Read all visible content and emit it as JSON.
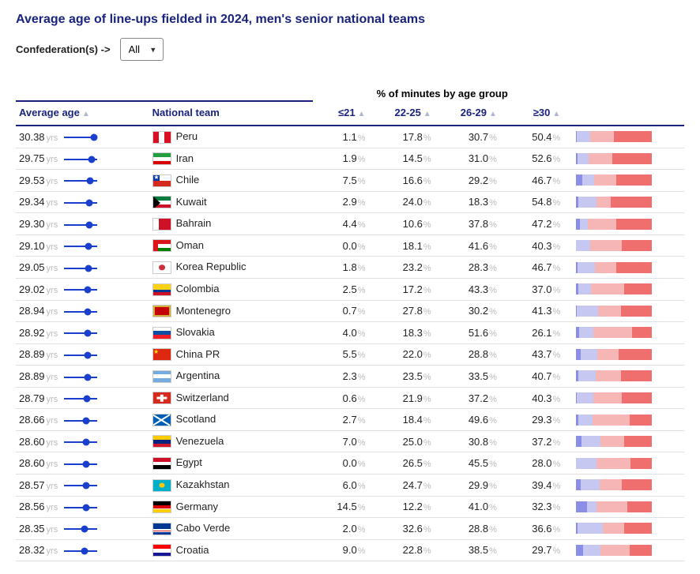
{
  "title": "Average age of line-ups fielded in 2024, men's senior national teams",
  "filter": {
    "label": "Confederation(s) ->",
    "selected": "All"
  },
  "age_group_header": "% of minutes by age group",
  "columns": {
    "avg_age": "Average age",
    "team": "National team",
    "g21": "≤21",
    "g2225": "22-25",
    "g2629": "26-29",
    "g30": "≥30"
  },
  "yrs_label": "yrs",
  "pct_label": "%",
  "age_spark": {
    "min": 24,
    "max": 31
  },
  "stack_colors": [
    "#8a8ee6",
    "#c6c8f2",
    "#f6b6b6",
    "#ef6e6e"
  ],
  "flag_defs": {
    "Peru": [
      [
        "bg",
        "#ffffff"
      ],
      [
        "v",
        "0",
        "33",
        "#d91023"
      ],
      [
        "v",
        "67",
        "33",
        "#d91023"
      ]
    ],
    "Iran": [
      [
        "h",
        "0",
        "33",
        "#239f40"
      ],
      [
        "h",
        "33",
        "34",
        "#ffffff"
      ],
      [
        "h",
        "67",
        "33",
        "#da0000"
      ]
    ],
    "Chile": [
      [
        "bg",
        "#ffffff"
      ],
      [
        "h",
        "50",
        "50",
        "#d52b1e"
      ],
      [
        "rect",
        "0",
        "0",
        "40",
        "50",
        "#0039a6"
      ],
      [
        "star",
        "20",
        "25",
        "#ffffff"
      ]
    ],
    "Kuwait": [
      [
        "h",
        "0",
        "33",
        "#007a3d"
      ],
      [
        "h",
        "33",
        "34",
        "#ffffff"
      ],
      [
        "h",
        "67",
        "33",
        "#ce1126"
      ],
      [
        "tri",
        "#000000"
      ]
    ],
    "Bahrain": [
      [
        "bg",
        "#ce1126"
      ],
      [
        "v",
        "0",
        "35",
        "#ffffff"
      ]
    ],
    "Oman": [
      [
        "bg",
        "#ffffff"
      ],
      [
        "h",
        "67",
        "33",
        "#008000"
      ],
      [
        "v",
        "0",
        "30",
        "#db161b"
      ],
      [
        "h",
        "0",
        "33",
        "#db161b"
      ]
    ],
    "Korea Republic": [
      [
        "bg",
        "#ffffff"
      ],
      [
        "circ",
        "50",
        "50",
        "18",
        "#cd2e3a"
      ]
    ],
    "Colombia": [
      [
        "h",
        "0",
        "50",
        "#fcd116"
      ],
      [
        "h",
        "50",
        "25",
        "#003893"
      ],
      [
        "h",
        "75",
        "25",
        "#ce1126"
      ]
    ],
    "Montenegro": [
      [
        "bg",
        "#c40308"
      ],
      [
        "border",
        "#d3ae3b"
      ]
    ],
    "Slovakia": [
      [
        "h",
        "0",
        "33",
        "#ffffff"
      ],
      [
        "h",
        "33",
        "34",
        "#0b4ea2"
      ],
      [
        "h",
        "67",
        "33",
        "#ee1c25"
      ]
    ],
    "China PR": [
      [
        "bg",
        "#de2910"
      ],
      [
        "star",
        "18",
        "30",
        "#ffde00"
      ]
    ],
    "Argentina": [
      [
        "h",
        "0",
        "33",
        "#74acdf"
      ],
      [
        "h",
        "33",
        "34",
        "#ffffff"
      ],
      [
        "h",
        "67",
        "33",
        "#74acdf"
      ]
    ],
    "Switzerland": [
      [
        "bg",
        "#d52b1e"
      ],
      [
        "plus",
        "#ffffff"
      ]
    ],
    "Scotland": [
      [
        "bg",
        "#005eb8"
      ],
      [
        "salt",
        "#ffffff"
      ]
    ],
    "Venezuela": [
      [
        "h",
        "0",
        "33",
        "#ffcc00"
      ],
      [
        "h",
        "33",
        "34",
        "#00247d"
      ],
      [
        "h",
        "67",
        "33",
        "#cf142b"
      ]
    ],
    "Egypt": [
      [
        "h",
        "0",
        "33",
        "#ce1126"
      ],
      [
        "h",
        "33",
        "34",
        "#ffffff"
      ],
      [
        "h",
        "67",
        "33",
        "#000000"
      ]
    ],
    "Kazakhstan": [
      [
        "bg",
        "#00afca"
      ],
      [
        "circ",
        "50",
        "50",
        "16",
        "#fec50c"
      ]
    ],
    "Germany": [
      [
        "h",
        "0",
        "33",
        "#000000"
      ],
      [
        "h",
        "33",
        "34",
        "#dd0000"
      ],
      [
        "h",
        "67",
        "33",
        "#ffce00"
      ]
    ],
    "Cabo Verde": [
      [
        "bg",
        "#003893"
      ],
      [
        "h",
        "55",
        "10",
        "#ffffff"
      ],
      [
        "h",
        "65",
        "8",
        "#cf2027"
      ],
      [
        "h",
        "73",
        "10",
        "#ffffff"
      ]
    ],
    "Croatia": [
      [
        "h",
        "0",
        "33",
        "#ff0000"
      ],
      [
        "h",
        "33",
        "34",
        "#ffffff"
      ],
      [
        "h",
        "67",
        "33",
        "#171796"
      ]
    ]
  },
  "rows": [
    {
      "age": 30.38,
      "team": "Peru",
      "g21": 1.1,
      "g2225": 17.8,
      "g2629": 30.7,
      "g30": 50.4
    },
    {
      "age": 29.75,
      "team": "Iran",
      "g21": 1.9,
      "g2225": 14.5,
      "g2629": 31.0,
      "g30": 52.6
    },
    {
      "age": 29.53,
      "team": "Chile",
      "g21": 7.5,
      "g2225": 16.6,
      "g2629": 29.2,
      "g30": 46.7
    },
    {
      "age": 29.34,
      "team": "Kuwait",
      "g21": 2.9,
      "g2225": 24.0,
      "g2629": 18.3,
      "g30": 54.8
    },
    {
      "age": 29.3,
      "team": "Bahrain",
      "g21": 4.4,
      "g2225": 10.6,
      "g2629": 37.8,
      "g30": 47.2
    },
    {
      "age": 29.1,
      "team": "Oman",
      "g21": 0.0,
      "g2225": 18.1,
      "g2629": 41.6,
      "g30": 40.3
    },
    {
      "age": 29.05,
      "team": "Korea Republic",
      "g21": 1.8,
      "g2225": 23.2,
      "g2629": 28.3,
      "g30": 46.7
    },
    {
      "age": 29.02,
      "team": "Colombia",
      "g21": 2.5,
      "g2225": 17.2,
      "g2629": 43.3,
      "g30": 37.0
    },
    {
      "age": 28.94,
      "team": "Montenegro",
      "g21": 0.7,
      "g2225": 27.8,
      "g2629": 30.2,
      "g30": 41.3
    },
    {
      "age": 28.92,
      "team": "Slovakia",
      "g21": 4.0,
      "g2225": 18.3,
      "g2629": 51.6,
      "g30": 26.1
    },
    {
      "age": 28.89,
      "team": "China PR",
      "g21": 5.5,
      "g2225": 22.0,
      "g2629": 28.8,
      "g30": 43.7
    },
    {
      "age": 28.89,
      "team": "Argentina",
      "g21": 2.3,
      "g2225": 23.5,
      "g2629": 33.5,
      "g30": 40.7
    },
    {
      "age": 28.79,
      "team": "Switzerland",
      "g21": 0.6,
      "g2225": 21.9,
      "g2629": 37.2,
      "g30": 40.3
    },
    {
      "age": 28.66,
      "team": "Scotland",
      "g21": 2.7,
      "g2225": 18.4,
      "g2629": 49.6,
      "g30": 29.3
    },
    {
      "age": 28.6,
      "team": "Venezuela",
      "g21": 7.0,
      "g2225": 25.0,
      "g2629": 30.8,
      "g30": 37.2
    },
    {
      "age": 28.6,
      "team": "Egypt",
      "g21": 0.0,
      "g2225": 26.5,
      "g2629": 45.5,
      "g30": 28.0
    },
    {
      "age": 28.57,
      "team": "Kazakhstan",
      "g21": 6.0,
      "g2225": 24.7,
      "g2629": 29.9,
      "g30": 39.4
    },
    {
      "age": 28.56,
      "team": "Germany",
      "g21": 14.5,
      "g2225": 12.2,
      "g2629": 41.0,
      "g30": 32.3
    },
    {
      "age": 28.35,
      "team": "Cabo Verde",
      "g21": 2.0,
      "g2225": 32.6,
      "g2629": 28.8,
      "g30": 36.6
    },
    {
      "age": 28.32,
      "team": "Croatia",
      "g21": 9.0,
      "g2225": 22.8,
      "g2629": 38.5,
      "g30": 29.7
    }
  ]
}
